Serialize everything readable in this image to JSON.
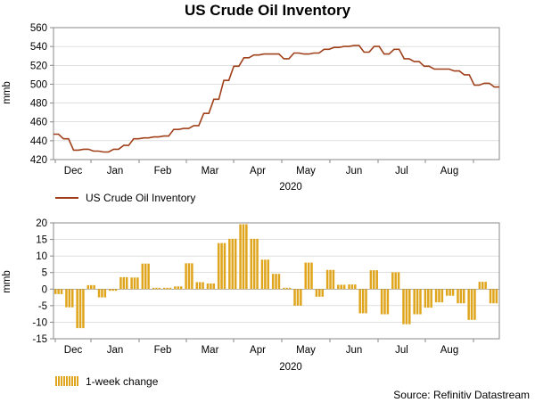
{
  "title": "US Crude Oil Inventory",
  "source": "Source: Refinitiv Datastream",
  "colors": {
    "line": "#a0401b",
    "bar": "#dfa51d",
    "axis": "#888888",
    "grid": "#cccccc"
  },
  "chart_data": [
    {
      "type": "line",
      "name": "US Crude Oil Inventory",
      "ylabel": "mmb",
      "xlabel": "2020",
      "ylim": [
        420,
        560
      ],
      "yticks": [
        420,
        440,
        460,
        480,
        500,
        520,
        540,
        560
      ],
      "month_labels": [
        "Dec",
        "Jan",
        "Feb",
        "Mar",
        "Apr",
        "May",
        "Jun",
        "Jul",
        "Aug"
      ],
      "legend": "US Crude Oil Inventory",
      "values": [
        447,
        447,
        442,
        442,
        430,
        430,
        431,
        431,
        429,
        429,
        428,
        428,
        431,
        431,
        435,
        435,
        442,
        442,
        443,
        443,
        444,
        444,
        445,
        445,
        452,
        452,
        453,
        453,
        456,
        456,
        469,
        469,
        484,
        484,
        504,
        504,
        519,
        519,
        528,
        528,
        531,
        531,
        532,
        532,
        532,
        532,
        527,
        527,
        533,
        533,
        532,
        532,
        533,
        533,
        537,
        537,
        539,
        539,
        540,
        540,
        541,
        541,
        534,
        534,
        540,
        540,
        532,
        532,
        537,
        537,
        527,
        527,
        524,
        524,
        519,
        519,
        516,
        516,
        516,
        516,
        514,
        514,
        510,
        510,
        499,
        499,
        501,
        501,
        497,
        497
      ]
    },
    {
      "type": "bar",
      "name": "1-week change",
      "ylabel": "mmb",
      "xlabel": "2020",
      "ylim": [
        -15,
        20
      ],
      "yticks": [
        -15,
        -10,
        -5,
        0,
        5,
        10,
        15,
        20
      ],
      "month_labels": [
        "Dec",
        "Jan",
        "Feb",
        "Mar",
        "Apr",
        "May",
        "Jun",
        "Jul",
        "Aug"
      ],
      "legend": "1-week change",
      "values": [
        -1.5,
        -5.5,
        -11.8,
        1.2,
        -2.5,
        -0.5,
        3.6,
        3.5,
        7.7,
        0.4,
        0.4,
        0.8,
        7.8,
        2.1,
        1.7,
        13.9,
        15.2,
        19.6,
        15.2,
        8.9,
        4.6,
        0.4,
        -5.0,
        8.0,
        -2.3,
        5.8,
        1.3,
        1.4,
        -7.3,
        5.7,
        -7.6,
        5.1,
        -10.6,
        -7.6,
        -5.6,
        -4.0,
        -2.0,
        -4.3,
        -9.3,
        2.2,
        -4.3
      ]
    }
  ]
}
